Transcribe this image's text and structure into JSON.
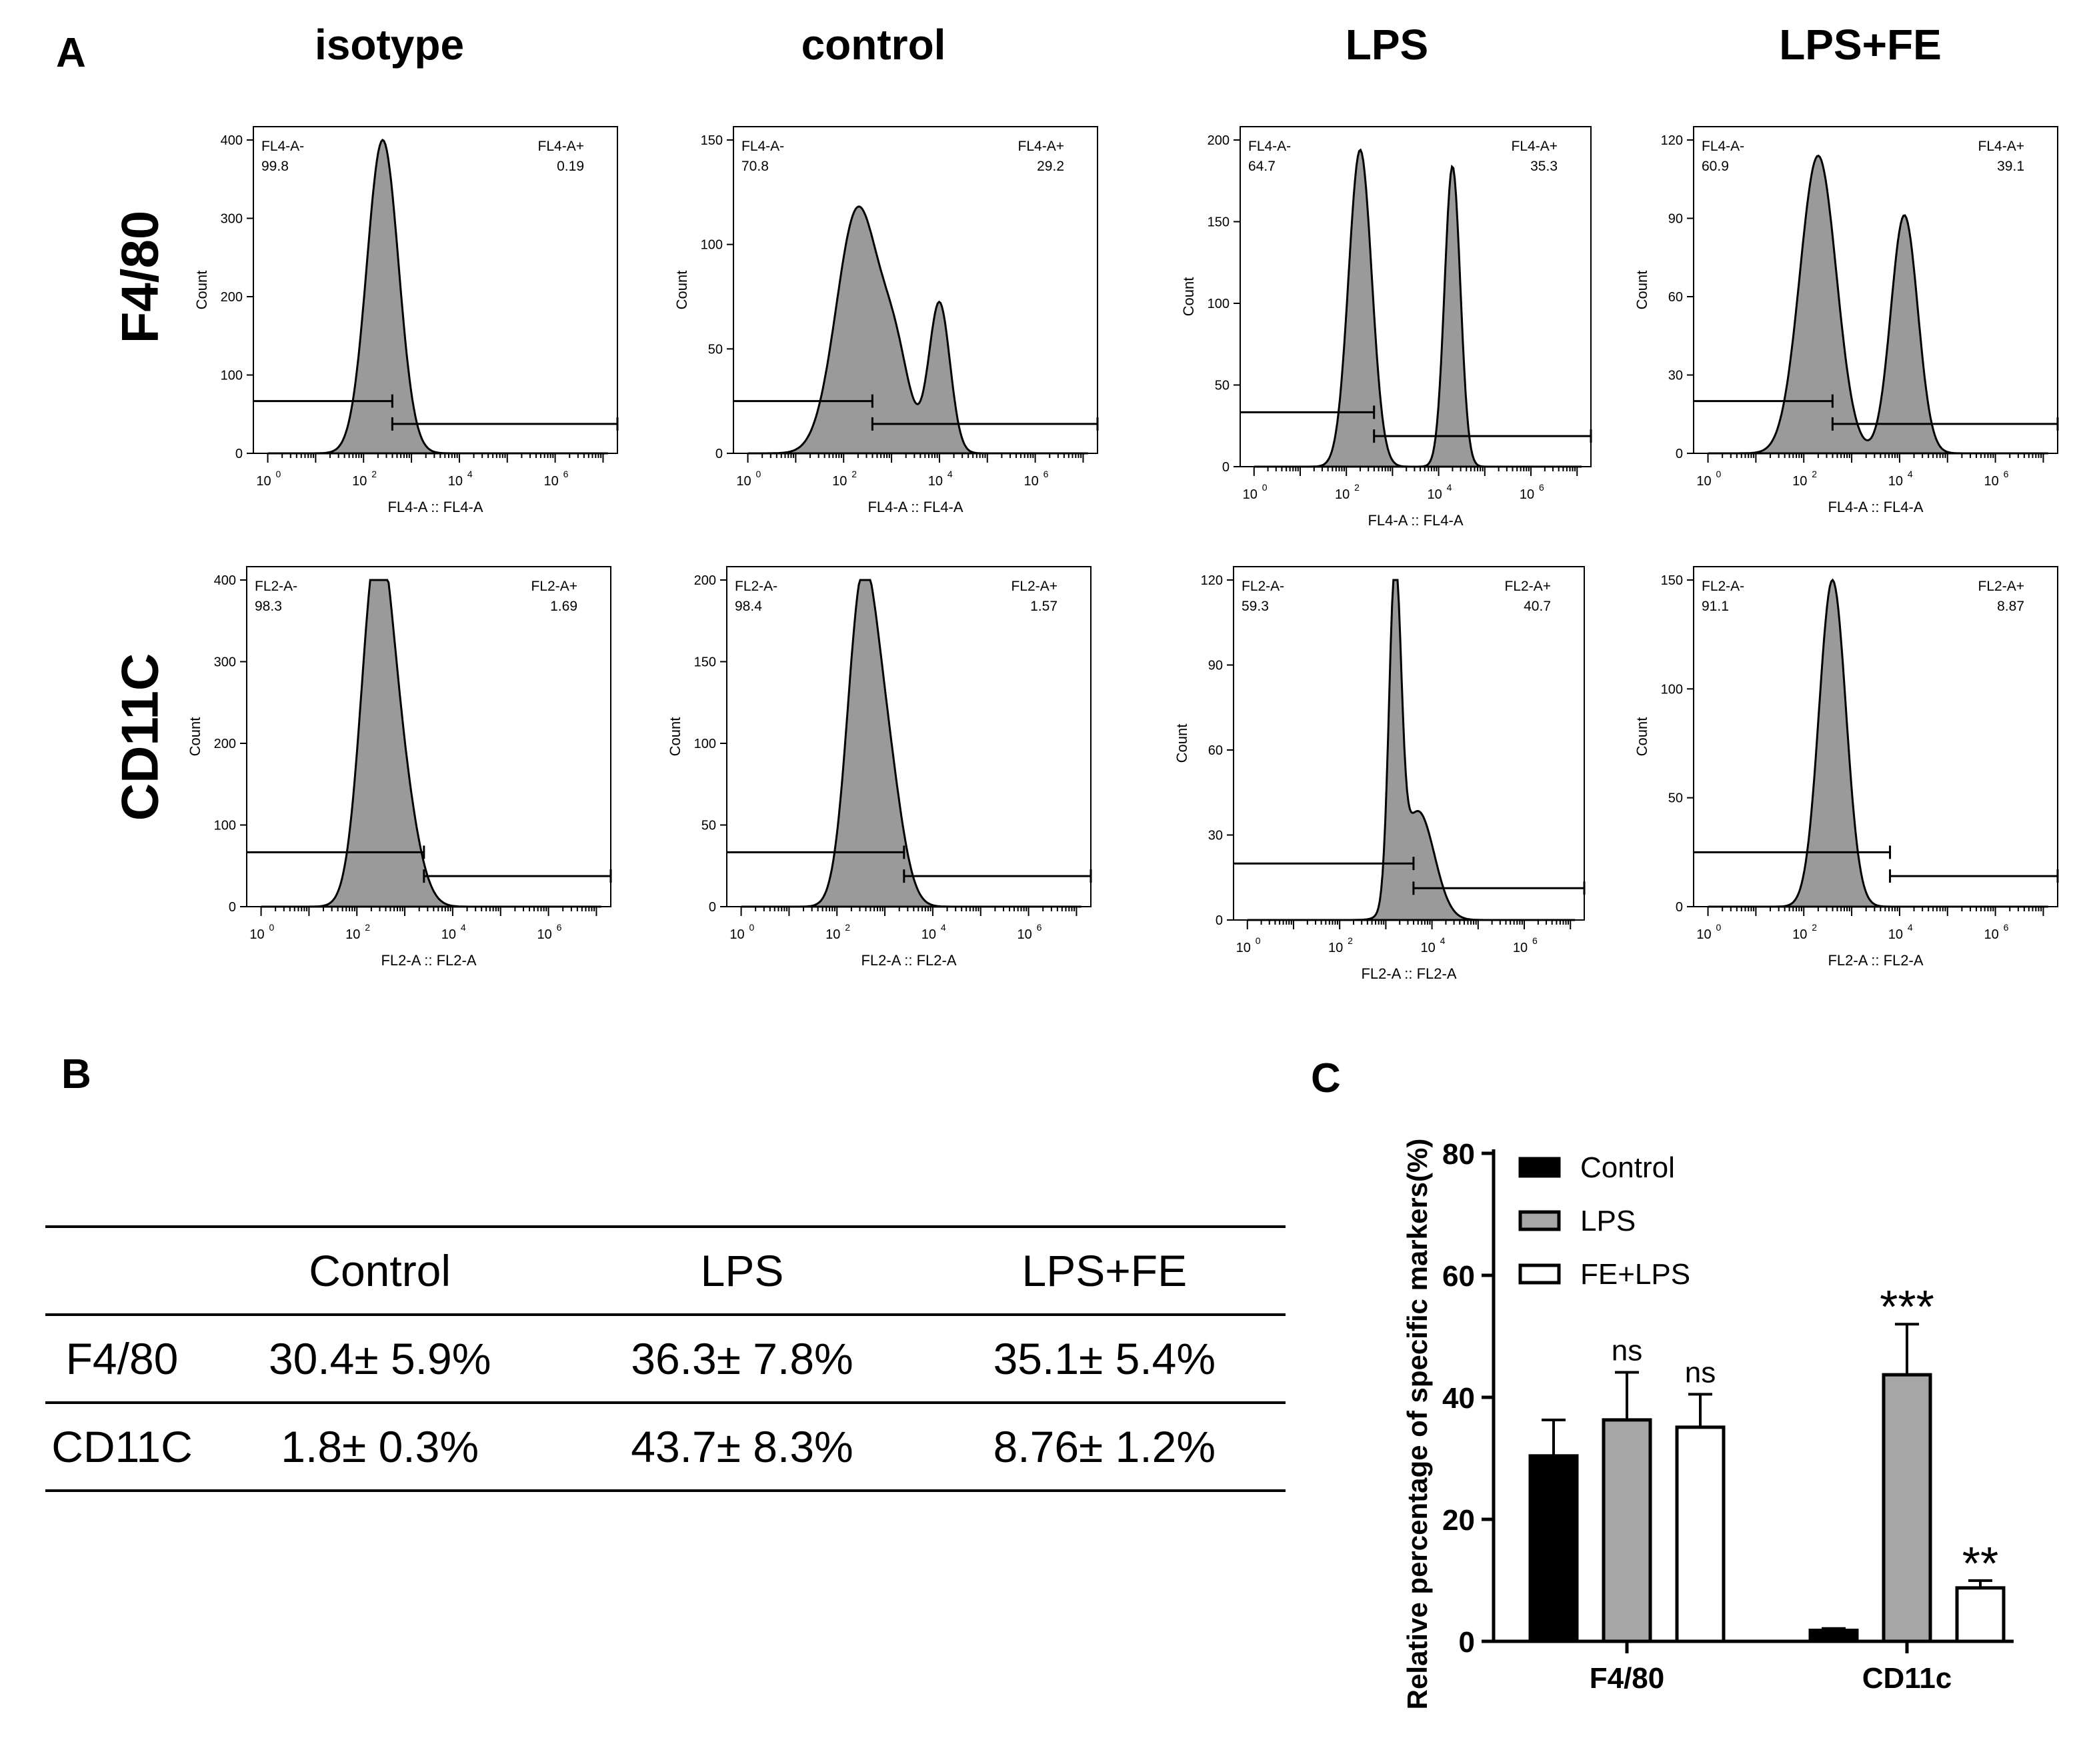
{
  "panels": {
    "a_label": "A",
    "b_label": "B",
    "c_label": "C"
  },
  "columns": [
    "isotype",
    "control",
    "LPS",
    "LPS+FE"
  ],
  "rows": [
    "F4/80",
    "CD11C"
  ],
  "histograms": [
    {
      "id": "f480-isotype",
      "ymax": 400,
      "yticks": [
        0,
        100,
        200,
        300,
        400
      ],
      "neg_label": "FL4-A-",
      "pos_label": "FL4-A+",
      "neg_val": "99.8",
      "pos_val": "0.19",
      "xaxis_label": "FL4-A :: FL4-A",
      "ylabel": "Count",
      "gate": 2.6,
      "peaks": [
        [
          2.4,
          1.0,
          0.33
        ]
      ]
    },
    {
      "id": "f480-control",
      "ymax": 150,
      "yticks": [
        0,
        50,
        100,
        150
      ],
      "neg_label": "FL4-A-",
      "pos_label": "FL4-A+",
      "neg_val": "70.8",
      "pos_val": "29.2",
      "xaxis_label": "FL4-A :: FL4-A",
      "ylabel": "Count",
      "gate": 2.6,
      "peaks": [
        [
          2.3,
          0.78,
          0.45
        ],
        [
          3.1,
          0.25,
          0.3
        ],
        [
          4.0,
          0.48,
          0.22
        ]
      ]
    },
    {
      "id": "f480-lps",
      "ymax": 200,
      "yticks": [
        0,
        50,
        100,
        150,
        200
      ],
      "neg_label": "FL4-A-",
      "pos_label": "FL4-A+",
      "neg_val": "64.7",
      "pos_val": "35.3",
      "xaxis_label": "FL4-A :: FL4-A",
      "ylabel": "Count",
      "gate": 2.6,
      "peaks": [
        [
          2.3,
          0.97,
          0.25
        ],
        [
          4.3,
          0.92,
          0.17
        ]
      ]
    },
    {
      "id": "f480-lpsfe",
      "ymax": 120,
      "yticks": [
        0,
        30,
        60,
        90,
        120
      ],
      "neg_label": "FL4-A-",
      "pos_label": "FL4-A+",
      "neg_val": "60.9",
      "pos_val": "39.1",
      "xaxis_label": "FL4-A :: FL4-A",
      "ylabel": "Count",
      "gate": 2.6,
      "peaks": [
        [
          2.3,
          0.95,
          0.38
        ],
        [
          4.1,
          0.76,
          0.28
        ]
      ]
    },
    {
      "id": "cd11c-isotype",
      "ymax": 400,
      "yticks": [
        0,
        100,
        200,
        300,
        400
      ],
      "neg_label": "FL2-A-",
      "pos_label": "FL2-A+",
      "neg_val": "98.3",
      "pos_val": "1.69",
      "xaxis_label": "FL2-A :: FL2-A",
      "ylabel": "Count",
      "gate": 3.4,
      "peaks": [
        [
          2.4,
          1.0,
          0.32
        ],
        [
          2.9,
          0.35,
          0.35
        ]
      ]
    },
    {
      "id": "cd11c-control",
      "ymax": 200,
      "yticks": [
        0,
        50,
        100,
        150,
        200
      ],
      "neg_label": "FL2-A-",
      "pos_label": "FL2-A+",
      "neg_val": "98.4",
      "pos_val": "1.57",
      "xaxis_label": "FL2-A :: FL2-A",
      "ylabel": "Count",
      "gate": 3.4,
      "peaks": [
        [
          2.5,
          0.88,
          0.3
        ],
        [
          3.0,
          0.45,
          0.33
        ]
      ]
    },
    {
      "id": "cd11c-lps",
      "ymax": 120,
      "yticks": [
        0,
        30,
        60,
        90,
        120
      ],
      "neg_label": "FL2-A-",
      "pos_label": "FL2-A+",
      "neg_val": "59.3",
      "pos_val": "40.7",
      "xaxis_label": "FL2-A :: FL2-A",
      "ylabel": "Count",
      "gate": 3.6,
      "peaks": [
        [
          3.2,
          0.95,
          0.13
        ],
        [
          3.7,
          0.32,
          0.35
        ]
      ]
    },
    {
      "id": "cd11c-lpsfe",
      "ymax": 150,
      "yticks": [
        0,
        50,
        100,
        150
      ],
      "neg_label": "FL2-A-",
      "pos_label": "FL2-A+",
      "neg_val": "91.1",
      "pos_val": "8.87",
      "xaxis_label": "FL2-A :: FL2-A",
      "ylabel": "Count",
      "gate": 3.8,
      "peaks": [
        [
          2.6,
          1.0,
          0.28
        ]
      ]
    }
  ],
  "xtick_labels": [
    "10",
    "10",
    "10",
    "10"
  ],
  "xtick_exps": [
    "0",
    "2",
    "4",
    "6"
  ],
  "table": {
    "headers": [
      "",
      "Control",
      "LPS",
      "LPS+FE"
    ],
    "rows": [
      [
        "F4/80",
        "30.4± 5.9%",
        "36.3± 7.8%",
        "35.1± 5.4%"
      ],
      [
        "CD11C",
        "1.8± 0.3%",
        "43.7± 8.3%",
        "8.76± 1.2%"
      ]
    ]
  },
  "chart_data": {
    "type": "bar",
    "title": "",
    "ylabel": "Relative percentage of specific markers(%)",
    "xlabel": "",
    "ylim": [
      0,
      80
    ],
    "yticks": [
      0,
      20,
      40,
      60,
      80
    ],
    "categories": [
      "F4/80",
      "CD11c"
    ],
    "series": [
      {
        "name": "Control",
        "color": "#000000",
        "values": [
          30.4,
          1.8
        ],
        "errors": [
          5.9,
          0.3
        ],
        "annotations": [
          "",
          ""
        ]
      },
      {
        "name": "LPS",
        "color": "#a6a6a6",
        "values": [
          36.3,
          43.7
        ],
        "errors": [
          7.8,
          8.3
        ],
        "annotations": [
          "ns",
          "***"
        ]
      },
      {
        "name": "FE+LPS",
        "color": "#ffffff",
        "values": [
          35.1,
          8.76
        ],
        "errors": [
          5.4,
          1.2
        ],
        "annotations": [
          "ns",
          "**"
        ]
      }
    ],
    "legend": "top-left"
  }
}
